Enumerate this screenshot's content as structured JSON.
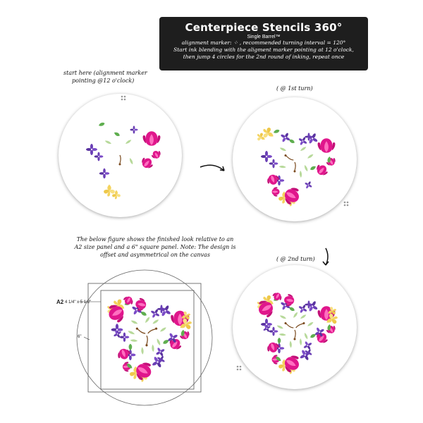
{
  "banner": {
    "title": "Centerpiece Stencils 360°",
    "subtitle": "Single Barrel™",
    "line1": "alignment marker: ⁘ , recommended turning interval = 120°",
    "line2": "Start ink blending with the aligment marker pointing at 12 o'clock,",
    "line3": "then jump 4 circles for the 2nd round of inking, repeat once"
  },
  "notes": {
    "start_line1": "start here (alignment marker",
    "start_line2": "pointing @12 o'clock)",
    "turn1": "( @ 1st turn)",
    "turn2": "( @ 2nd turn)",
    "figure_line1": "The below figure shows the finished look relative to an",
    "figure_line2": "A2 size panel and a 6\" square panel.  Note:  The design is",
    "figure_line3": "offset and asymmetrical on the canvas"
  },
  "dimensions": {
    "a2_label": "A2",
    "a2_size": "4 1/4\" x 5 1/2\"",
    "six_inch": "6\""
  },
  "colors": {
    "magenta": "#e0168c",
    "purple": "#6a3fb5",
    "yellow": "#f4d35e",
    "green": "#5fae4f",
    "banner": "#1e1e1e"
  }
}
